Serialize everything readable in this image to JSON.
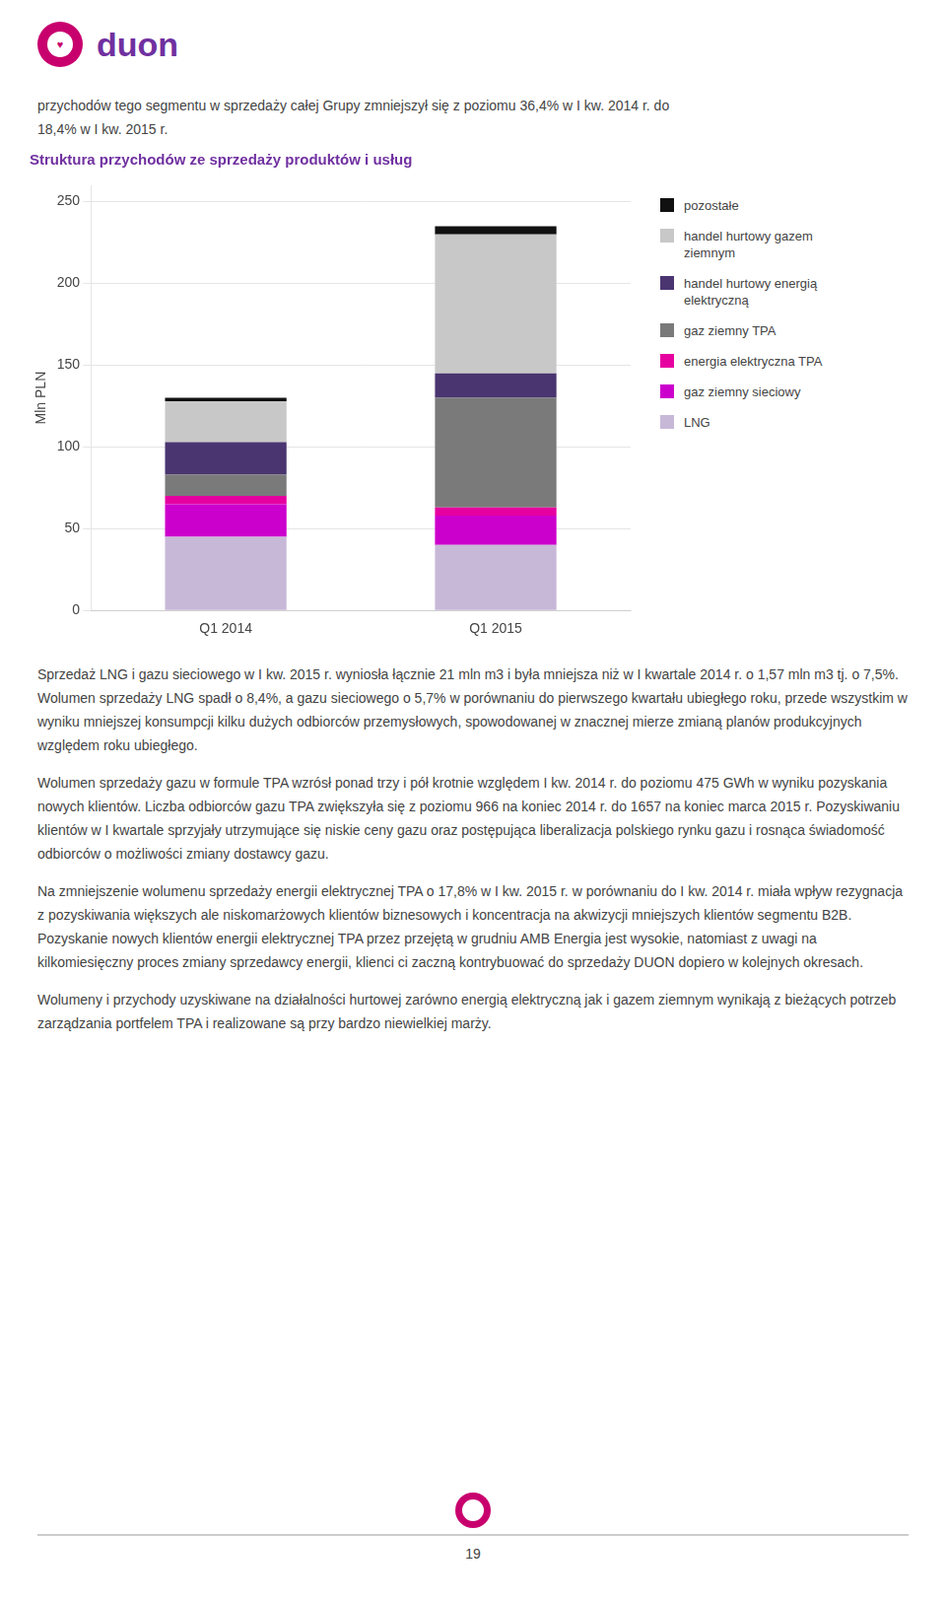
{
  "chart_data": {
    "type": "bar",
    "stacked": true,
    "title": "Struktura przychodów ze sprzedaży produktów i usług",
    "ylabel": "Mln PLN",
    "categories": [
      "Q1 2014",
      "Q1 2015"
    ],
    "series": [
      {
        "name": "LNG",
        "color": "#c8b8d8",
        "values": [
          45,
          40
        ]
      },
      {
        "name": "gaz ziemny sieciowy",
        "color": "#cc00cc",
        "values": [
          20,
          18
        ]
      },
      {
        "name": "energia elektryczna TPA",
        "color": "#e600a0",
        "values": [
          5,
          5
        ]
      },
      {
        "name": "gaz ziemny TPA",
        "color": "#7a7a7a",
        "values": [
          13,
          67
        ]
      },
      {
        "name": "handel hurtowy energią\nelektryczną",
        "color": "#4a3570",
        "values": [
          20,
          15
        ]
      },
      {
        "name": "handel hurtowy gazem\nziemnym",
        "color": "#c8c8c8",
        "values": [
          25,
          85
        ]
      },
      {
        "name": "pozostałe",
        "color": "#111111",
        "values": [
          2,
          5
        ]
      }
    ],
    "ylim": [
      0,
      260
    ],
    "yticks": [
      0,
      50,
      100,
      150,
      200,
      250
    ],
    "grid": true,
    "legend": "right",
    "annotations": [
      "♥",
      "duon",
      "przychodów tego segmentu w sprzedaży całej Grupy zmniejszył się z poziomu 36,4% w I kw. 2014 r. do",
      "18,4% w I kw. 2015 r.",
      "Sprzedaż LNG i gazu sieciowego w I kw. 2015 r. wyniosła łącznie 21 mln m3 i była mniejsza niż w I kwartale 2014 r. o 1,57 mln m3 tj. o 7,5%. Wolumen sprzedaży LNG spadł o 8,4%, a gazu sieciowego o 5,7% w porównaniu do pierwszego kwartału ubiegłego roku, przede wszystkim w wyniku mniejszej konsumpcji kilku dużych odbiorców przemysłowych, spowodowanej w znacznej mierze zmianą planów produkcyjnych względem roku ubiegłego.",
      "Wolumen sprzedaży gazu w formule TPA wzrósł ponad trzy i pół krotnie względem I kw. 2014 r. do poziomu 475 GWh w wyniku pozyskania nowych klientów. Liczba odbiorców gazu TPA zwiększyła się z poziomu 966 na koniec 2014 r. do 1657 na koniec marca 2015 r. Pozyskiwaniu klientów w I kwartale sprzyjały utrzymujące się niskie ceny gazu oraz postępująca liberalizacja polskiego rynku gazu i rosnąca świadomość odbiorców o możliwości zmiany dostawcy gazu.",
      "Na zmniejszenie wolumenu sprzedaży energii elektrycznej TPA o 17,8% w I kw. 2015 r. w porównaniu do I kw. 2014 r. miała wpływ rezygnacja z pozyskiwania większych ale niskomarżowych klientów biznesowych i koncentracja na akwizycji mniejszych klientów segmentu B2B. Pozyskanie nowych klientów energii elektrycznej TPA przez przejętą w grudniu AMB Energia jest wysokie, natomiast z uwagi na kilkomiesięczny proces zmiany sprzedawcy energii, klienci ci zaczną kontrybuować do sprzedaży DUON dopiero w kolejnych okresach.",
      "Wolumeny i przychody uzyskiwane na działalności hurtowej zarówno energią elektryczną jak i gazem ziemnym wynikają z bieżących potrzeb zarządzania portfelem TPA i realizowane są przy bardzo niewielkiej marży.",
      "19"
    ]
  }
}
